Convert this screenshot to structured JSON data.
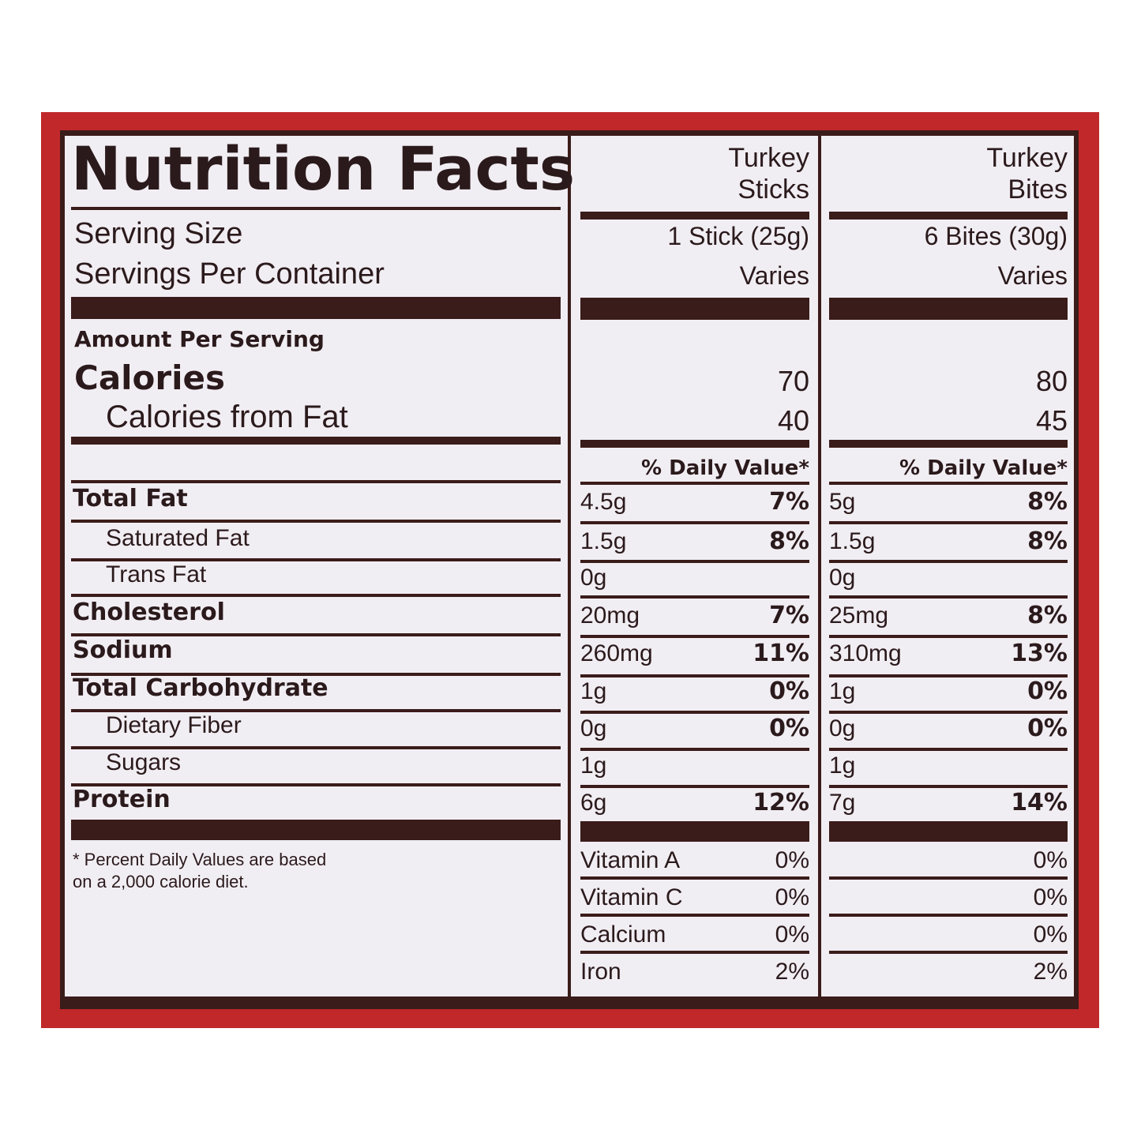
{
  "title": "Nutrition Facts",
  "products": [
    {
      "name_lines": [
        "Turkey",
        "Sticks"
      ],
      "serving_size": "1 Stick (25g)",
      "servings_per_container": "Varies",
      "calories": "70",
      "calories_from_fat": "40"
    },
    {
      "name_lines": [
        "Turkey",
        "Bites"
      ],
      "serving_size": "6 Bites (30g)",
      "servings_per_container": "Varies",
      "calories": "80",
      "calories_from_fat": "45"
    }
  ],
  "serving_size_label": "Serving Size",
  "servings_per_container_label": "Servings Per Container",
  "amount_per_serving": "Amount Per Serving",
  "calories_label": "Calories",
  "calories_from_fat_label": "Calories from Fat",
  "daily_value_header": "% Daily Value*",
  "nutrients": [
    {
      "label": "Total Fat",
      "bold": true,
      "values": [
        {
          "amount": "4.5g",
          "dv": "7%"
        },
        {
          "amount": "5g",
          "dv": "8%"
        }
      ]
    },
    {
      "label": "Saturated Fat",
      "bold": false,
      "values": [
        {
          "amount": "1.5g",
          "dv": "8%"
        },
        {
          "amount": "1.5g",
          "dv": "8%"
        }
      ]
    },
    {
      "label": "Trans Fat",
      "bold": false,
      "values": [
        {
          "amount": "0g"
        },
        {
          "amount": "0g"
        }
      ]
    },
    {
      "label": "Cholesterol",
      "bold": true,
      "values": [
        {
          "amount": "20mg",
          "dv": "7%"
        },
        {
          "amount": "25mg",
          "dv": "8%"
        }
      ]
    },
    {
      "label": "Sodium",
      "bold": true,
      "values": [
        {
          "amount": "260mg",
          "dv": "11%"
        },
        {
          "amount": "310mg",
          "dv": "13%"
        }
      ]
    },
    {
      "label": "Total Carbohydrate",
      "bold": true,
      "values": [
        {
          "amount": "1g",
          "dv": "0%"
        },
        {
          "amount": "1g",
          "dv": "0%"
        }
      ]
    },
    {
      "label": "Dietary Fiber",
      "bold": false,
      "values": [
        {
          "amount": "0g",
          "dv": "0%"
        },
        {
          "amount": "0g",
          "dv": "0%"
        }
      ]
    },
    {
      "label": "Sugars",
      "bold": false,
      "values": [
        {
          "amount": "1g"
        },
        {
          "amount": "1g"
        }
      ]
    },
    {
      "label": "Protein",
      "bold": true,
      "values": [
        {
          "amount": "6g",
          "dv": "12%"
        },
        {
          "amount": "7g",
          "dv": "14%"
        }
      ]
    }
  ],
  "vitamins": [
    {
      "label": "Vitamin A",
      "values": [
        "0%",
        "0%"
      ]
    },
    {
      "label": "Vitamin C",
      "values": [
        "0%",
        "0%"
      ]
    },
    {
      "label": "Calcium",
      "values": [
        "0%",
        "0%"
      ]
    },
    {
      "label": "Iron",
      "values": [
        "2%",
        "2%"
      ]
    }
  ],
  "footnote_lines": [
    "* Percent Daily Values are based",
    "on a 2,000 calorie diet."
  ]
}
